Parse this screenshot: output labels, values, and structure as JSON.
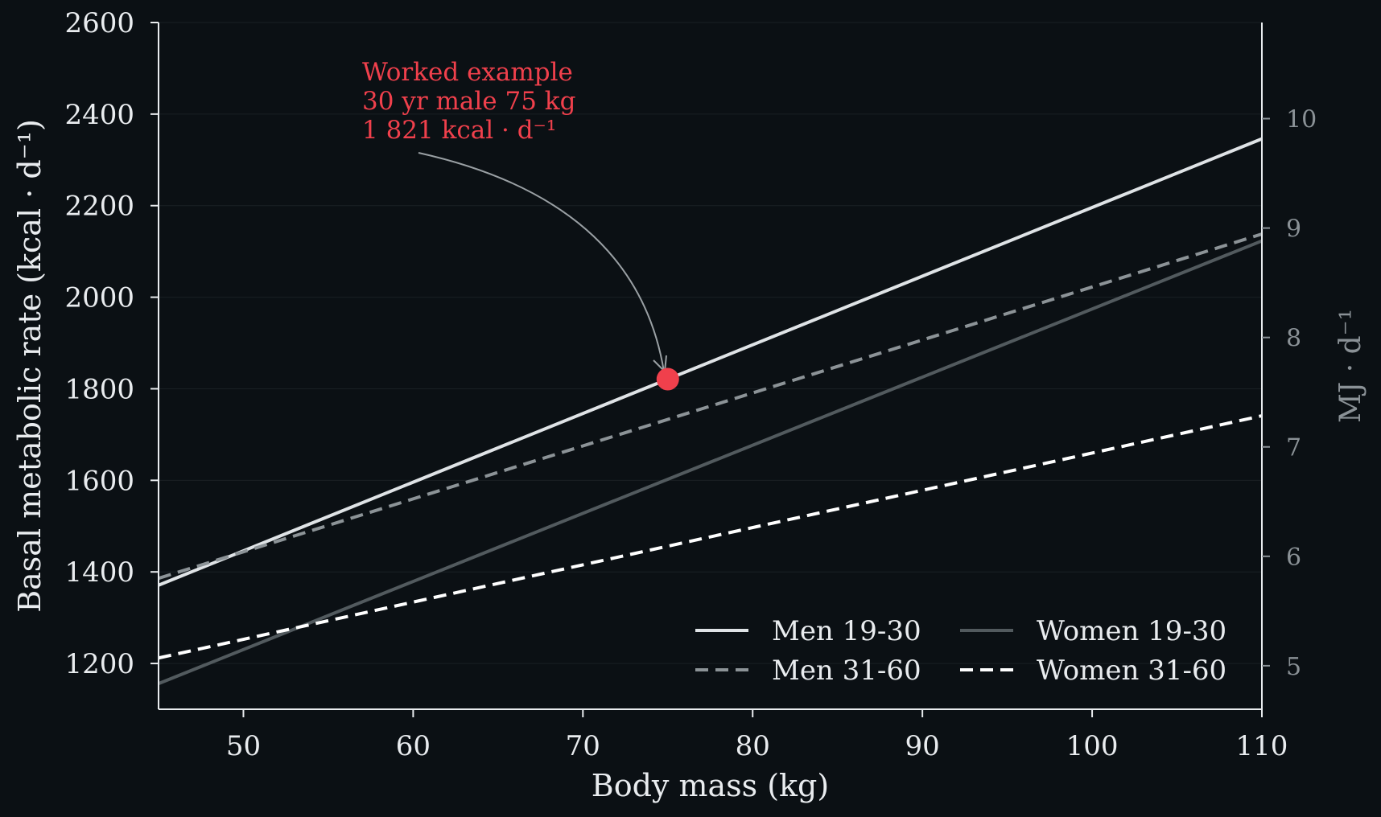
{
  "colors": {
    "background": "#0b1014",
    "axis": "#e9ecef",
    "right_axis": "#8a9196",
    "grid": "#1a2024",
    "accent": "#f0404c",
    "arrow": "#9aa0a4"
  },
  "chart_data": {
    "type": "line",
    "xlabel": "Body mass (kg)",
    "ylabel": "Basal metabolic rate (kcal · d⁻¹)",
    "ylabel_right": "MJ · d⁻¹",
    "xlim": [
      45,
      110
    ],
    "ylim": [
      1100,
      2600
    ],
    "ylim_right_mj": [
      4.6024,
      10.8784
    ],
    "xticks": [
      "50",
      "60",
      "70",
      "80",
      "90",
      "100",
      "110"
    ],
    "xtick_values": [
      50,
      60,
      70,
      80,
      90,
      100,
      110
    ],
    "yticks": [
      "1200",
      "1400",
      "1600",
      "1800",
      "2000",
      "2200",
      "2400",
      "2600"
    ],
    "ytick_values": [
      1200,
      1400,
      1600,
      1800,
      2000,
      2200,
      2400,
      2600
    ],
    "yticks_right": [
      "5",
      "6",
      "7",
      "8",
      "9",
      "10"
    ],
    "ytick_right_values": [
      5,
      6,
      7,
      8,
      9,
      10
    ],
    "grid": "horizontal",
    "legend_position": "lower-right",
    "series": [
      {
        "name": "Men 19-30",
        "x": [
          45,
          110
        ],
        "y": [
          1371,
          2346
        ],
        "color": "#dfe3e6",
        "dash": "solid"
      },
      {
        "name": "Men 31-60",
        "x": [
          45,
          110
        ],
        "y": [
          1386,
          2138
        ],
        "color": "#8c9397",
        "dash": "dashed"
      },
      {
        "name": "Women 19-30",
        "x": [
          45,
          110
        ],
        "y": [
          1156,
          2123
        ],
        "color": "#525a5e",
        "dash": "solid"
      },
      {
        "name": "Women 31-60",
        "x": [
          45,
          110
        ],
        "y": [
          1212,
          1741
        ],
        "color": "#ffffff",
        "dash": "dashed"
      }
    ],
    "annotation": {
      "x": 75,
      "y": 1821,
      "lines": [
        "Worked example",
        "30 yr  male  75 kg",
        "1 821 kcal · d⁻¹"
      ]
    }
  }
}
